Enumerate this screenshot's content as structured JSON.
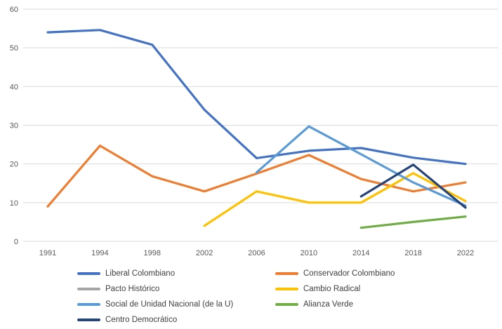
{
  "chart_data": {
    "type": "line",
    "title": "",
    "xlabel": "",
    "ylabel": "",
    "x_categories": [
      "1991",
      "1994",
      "1998",
      "2002",
      "2006",
      "2010",
      "2014",
      "2018",
      "2022"
    ],
    "y_ticks": [
      0,
      10,
      20,
      30,
      40,
      50,
      60
    ],
    "ylim": [
      0,
      60
    ],
    "grid": "horizontal",
    "gridline_color": "#d9d9d9",
    "axis_label_color": "#595959",
    "legend_position": "bottom",
    "series": [
      {
        "name": "Liberal Colombiano",
        "color": "#4472C4",
        "values": [
          54,
          54.6,
          50.8,
          34,
          21.5,
          23.4,
          24.1,
          21.6,
          20
        ]
      },
      {
        "name": "Conservador Colombiano",
        "color": "#ED7D31",
        "values": [
          9,
          24.7,
          16.8,
          12.9,
          17.5,
          22.3,
          16.1,
          12.9,
          15.2
        ]
      },
      {
        "name": "Pacto Histórico",
        "color": "#A5A5A5",
        "values": [
          null,
          null,
          null,
          null,
          null,
          null,
          null,
          null,
          null
        ]
      },
      {
        "name": "Cambio Radical",
        "color": "#FFC000",
        "values": [
          null,
          null,
          null,
          4,
          12.9,
          10,
          10,
          17.6,
          10.4
        ]
      },
      {
        "name": "Social de Unidad Nacional (de la U)",
        "color": "#5B9BD5",
        "values": [
          null,
          null,
          null,
          null,
          17.8,
          29.7,
          22.5,
          15.2,
          9.2
        ]
      },
      {
        "name": "Alianza Verde",
        "color": "#70AD47",
        "values": [
          null,
          null,
          null,
          null,
          null,
          null,
          3.5,
          5,
          6.4
        ]
      },
      {
        "name": "Centro Democrático",
        "color": "#264478",
        "values": [
          null,
          null,
          null,
          null,
          null,
          null,
          11.6,
          19.8,
          8.7
        ]
      }
    ]
  }
}
